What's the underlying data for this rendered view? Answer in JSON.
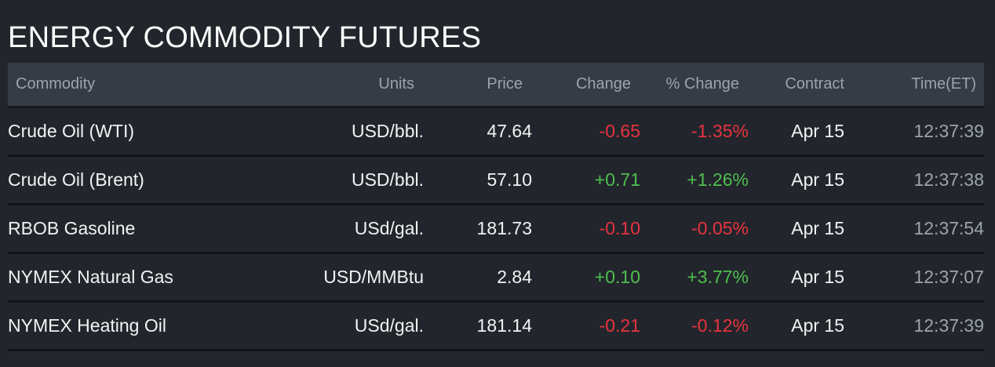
{
  "title": "ENERGY COMMODITY FUTURES",
  "colors": {
    "background": "#22262c",
    "header_bg": "#353c45",
    "negative": "#e8323f",
    "positive": "#4fbf4f"
  },
  "columns": {
    "commodity": "Commodity",
    "units": "Units",
    "price": "Price",
    "change": "Change",
    "pct_change": "% Change",
    "contract": "Contract",
    "time": "Time(ET)"
  },
  "rows": [
    {
      "commodity": "Crude Oil (WTI)",
      "units": "USD/bbl.",
      "price": "47.64",
      "change": "-0.65",
      "pct_change": "-1.35%",
      "direction": "down",
      "contract": "Apr 15",
      "time": "12:37:39"
    },
    {
      "commodity": "Crude Oil (Brent)",
      "units": "USD/bbl.",
      "price": "57.10",
      "change": "+0.71",
      "pct_change": "+1.26%",
      "direction": "up",
      "contract": "Apr 15",
      "time": "12:37:38"
    },
    {
      "commodity": "RBOB Gasoline",
      "units": "USd/gal.",
      "price": "181.73",
      "change": "-0.10",
      "pct_change": "-0.05%",
      "direction": "down",
      "contract": "Apr 15",
      "time": "12:37:54"
    },
    {
      "commodity": "NYMEX Natural Gas",
      "units": "USD/MMBtu",
      "price": "2.84",
      "change": "+0.10",
      "pct_change": "+3.77%",
      "direction": "up",
      "contract": "Apr 15",
      "time": "12:37:07"
    },
    {
      "commodity": "NYMEX Heating Oil",
      "units": "USd/gal.",
      "price": "181.14",
      "change": "-0.21",
      "pct_change": "-0.12%",
      "direction": "down",
      "contract": "Apr 15",
      "time": "12:37:39"
    }
  ]
}
